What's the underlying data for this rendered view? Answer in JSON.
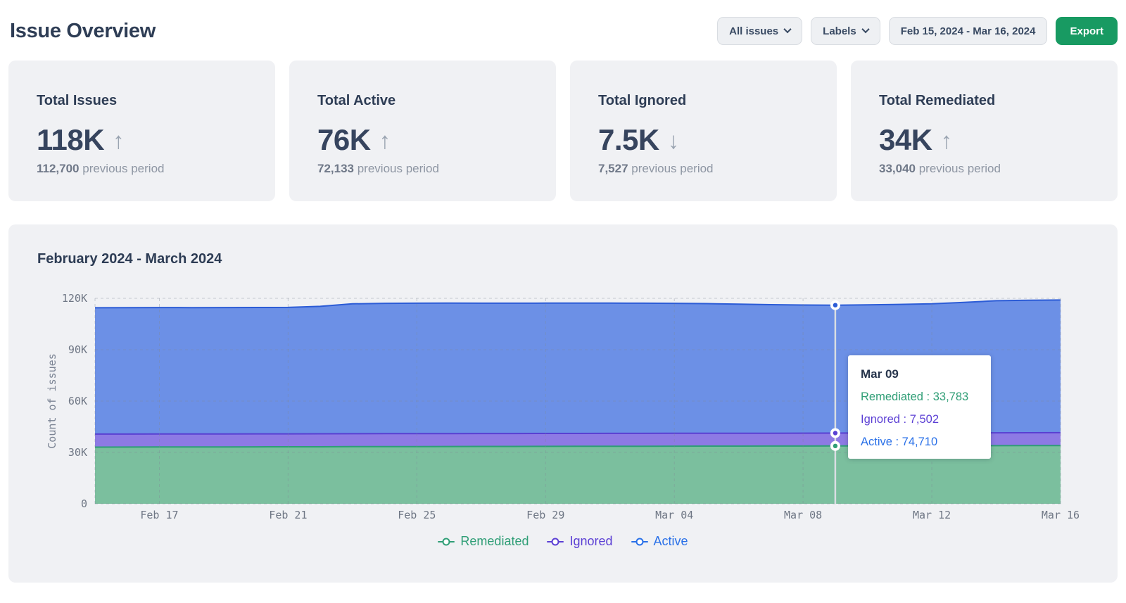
{
  "header": {
    "title": "Issue Overview",
    "filters": {
      "issues_dropdown": "All issues",
      "labels_dropdown": "Labels",
      "date_range": "Feb 15, 2024 - Mar 16, 2024",
      "export_label": "Export"
    }
  },
  "colors": {
    "accent_green": "#189a62",
    "card_bg": "#f0f1f4",
    "remediated_fill": "#7bbf9e",
    "remediated_stroke": "#2f9e76",
    "ignored_fill": "#8d7ae4",
    "ignored_stroke": "#5940d2",
    "active_fill": "#6c90e6",
    "active_stroke": "#2c5cd6",
    "arrow_gray": "#9aa4b1"
  },
  "stats": [
    {
      "title": "Total Issues",
      "value": "118K",
      "trend": "up",
      "trend_arrow": "↑",
      "previous": "112,700",
      "previous_suffix": " previous period"
    },
    {
      "title": "Total Active",
      "value": "76K",
      "trend": "up",
      "trend_arrow": "↑",
      "previous": "72,133",
      "previous_suffix": " previous period"
    },
    {
      "title": "Total Ignored",
      "value": "7.5K",
      "trend": "down",
      "trend_arrow": "↓",
      "previous": "7,527",
      "previous_suffix": " previous period"
    },
    {
      "title": "Total Remediated",
      "value": "34K",
      "trend": "up",
      "trend_arrow": "↑",
      "previous": "33,040",
      "previous_suffix": " previous period"
    }
  ],
  "chart": {
    "title": "February 2024 - March 2024",
    "ylabel": "Count of issues",
    "yticks": [
      "120K",
      "90K",
      "60K",
      "30K",
      "0"
    ],
    "legend": [
      {
        "label": "Remediated",
        "color": "#2f9e76"
      },
      {
        "label": "Ignored",
        "color": "#5b3fd4"
      },
      {
        "label": "Active",
        "color": "#2970e8"
      }
    ],
    "tooltip": {
      "title": "Mar 09",
      "rows": [
        {
          "text": "Remediated : 33,783",
          "color": "#2f9e76"
        },
        {
          "text": "Ignored : 7,502",
          "color": "#5b3fd4"
        },
        {
          "text": "Active : 74,710",
          "color": "#2970e8"
        }
      ]
    }
  },
  "chart_data": {
    "type": "area",
    "stacked": true,
    "title": "February 2024 - March 2024",
    "xlabel": "",
    "ylabel": "Count of issues",
    "ylim": [
      0,
      120000
    ],
    "grid": "dashed",
    "legend_position": "bottom",
    "x": [
      "Feb 15",
      "Feb 16",
      "Feb 17",
      "Feb 18",
      "Feb 19",
      "Feb 20",
      "Feb 21",
      "Feb 22",
      "Feb 23",
      "Feb 24",
      "Feb 25",
      "Feb 26",
      "Feb 27",
      "Feb 28",
      "Feb 29",
      "Mar 01",
      "Mar 02",
      "Mar 03",
      "Mar 04",
      "Mar 05",
      "Mar 06",
      "Mar 07",
      "Mar 08",
      "Mar 09",
      "Mar 10",
      "Mar 11",
      "Mar 12",
      "Mar 13",
      "Mar 14",
      "Mar 15",
      "Mar 16"
    ],
    "xtick_indices": [
      2,
      6,
      10,
      14,
      18,
      22,
      26,
      30
    ],
    "xtick_labels": [
      "Feb 17",
      "Feb 21",
      "Feb 25",
      "Feb 29",
      "Mar 04",
      "Mar 08",
      "Mar 12",
      "Mar 16"
    ],
    "highlight_index": 23,
    "highlight_label": "Mar 09",
    "series": [
      {
        "name": "Remediated",
        "fill": "#7bbf9e",
        "stroke": "#2f9e76",
        "values": [
          33100,
          33130,
          33160,
          33190,
          33210,
          33240,
          33270,
          33300,
          33350,
          33400,
          33430,
          33460,
          33490,
          33510,
          33540,
          33560,
          33590,
          33620,
          33650,
          33680,
          33700,
          33720,
          33750,
          33783,
          33820,
          33855,
          33890,
          33925,
          33960,
          34000,
          34040
        ]
      },
      {
        "name": "Ignored",
        "fill": "#8d7ae4",
        "stroke": "#5940d2",
        "values": [
          7620,
          7615,
          7610,
          7605,
          7600,
          7595,
          7590,
          7585,
          7580,
          7575,
          7570,
          7565,
          7560,
          7555,
          7550,
          7545,
          7540,
          7535,
          7530,
          7525,
          7520,
          7515,
          7510,
          7502,
          7505,
          7500,
          7498,
          7496,
          7494,
          7492,
          7490
        ]
      },
      {
        "name": "Active",
        "fill": "#6c90e6",
        "stroke": "#2c5cd6",
        "values": [
          73780,
          73815,
          73830,
          73785,
          73810,
          73815,
          73840,
          74415,
          75870,
          76125,
          76150,
          76175,
          76100,
          76115,
          76110,
          76115,
          76070,
          75995,
          75920,
          75695,
          75380,
          75065,
          74840,
          74710,
          74875,
          75095,
          75412,
          76179,
          77146,
          77408,
          77470
        ]
      }
    ]
  }
}
